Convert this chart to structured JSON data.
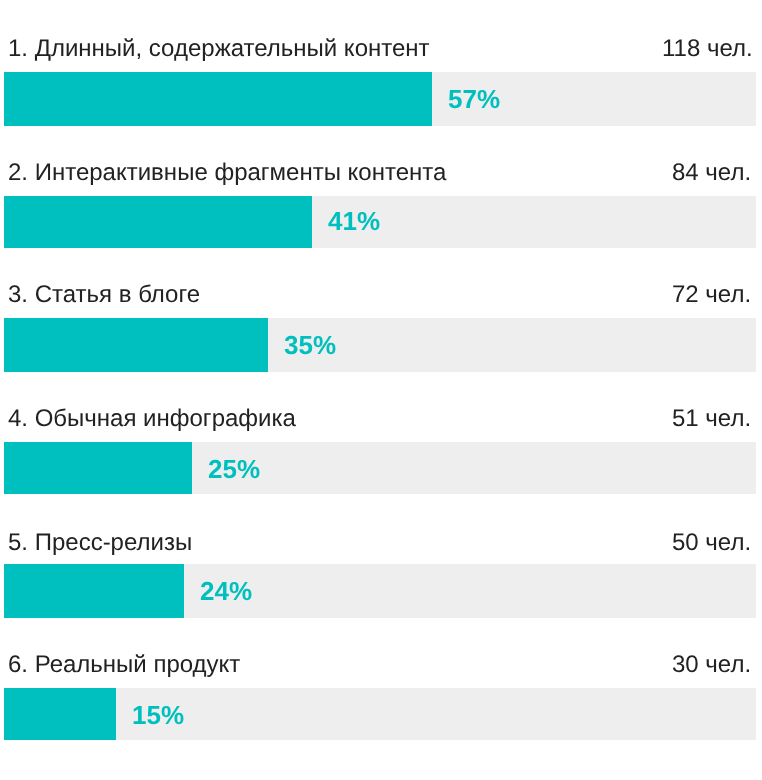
{
  "chart_data": {
    "type": "bar",
    "orientation": "horizontal",
    "stacked": true,
    "categories": [
      "1. Длинный, содержательный контент",
      "2. Интерактивные фрагменты контента",
      "3. Статья в блоге",
      "4. Обычная инфографика",
      "5. Пресс-релизы",
      "6. Реальный продукт"
    ],
    "series": [
      {
        "color": "#00bfbf",
        "values": [
          57,
          41,
          35,
          25,
          24,
          15
        ],
        "value_labels": [
          "57%",
          "41%",
          "35%",
          "25%",
          "24%",
          "15%"
        ]
      },
      {
        "color": "#eeeeee",
        "values": [
          43,
          59,
          65,
          75,
          76,
          85
        ]
      }
    ],
    "xlim": [
      0,
      100
    ],
    "tick_labels": false,
    "annotations": [
      "118 чел.",
      "84 чел.",
      "72 чел.",
      "51 чел.",
      "50 чел.",
      "30 чел."
    ]
  }
}
